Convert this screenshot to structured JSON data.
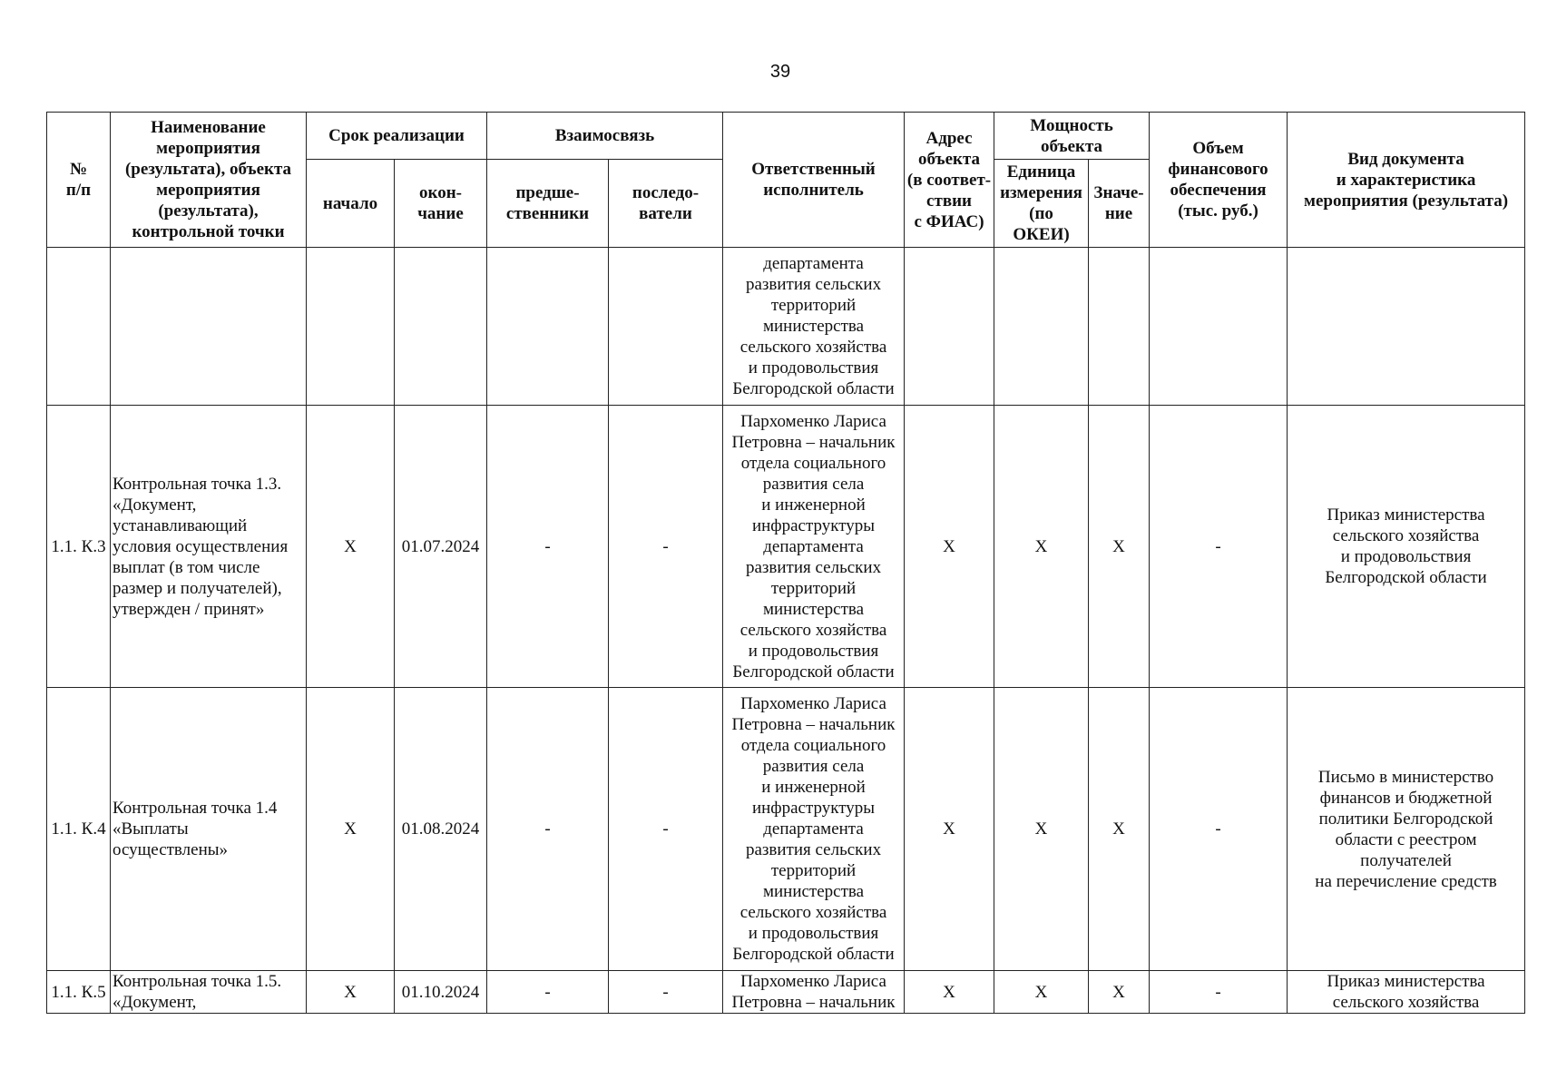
{
  "page_number": "39",
  "header": {
    "num": "№\nп/п",
    "name": "Наименование\nмероприятия\n(результата), объекта\nмероприятия\n(результата),\nконтрольной точки",
    "term": "Срок реализации",
    "term_start": "начало",
    "term_end": "окон-\nчание",
    "relation": "Взаимосвязь",
    "predecessors": "предше-\nственники",
    "successors": "последо-\nватели",
    "executor": "Ответственный\nисполнитель",
    "address": "Адрес\nобъекта\n(в соответ-\nствии\nс ФИАС)",
    "capacity": "Мощность\nобъекта",
    "unit": "Единица\nизмерения\n(по\nОКЕИ)",
    "value": "Значе-\nние",
    "finance": "Объем\nфинансового\nобеспечения\n(тыс. руб.)",
    "doc": "Вид документа\nи характеристика\nмероприятия (результата)"
  },
  "rows": [
    {
      "num": "",
      "name": "",
      "start": "",
      "end": "",
      "pred": "",
      "succ": "",
      "executor": "департамента\nразвития сельских\nтерриторий\nминистерства\nсельского хозяйства\nи продовольствия\nБелгородской области",
      "address": "",
      "unit": "",
      "value": "",
      "finance": "",
      "doc": ""
    },
    {
      "num": "1.1. К.3",
      "name": "Контрольная точка 1.3.\n«Документ,\nустанавливающий\nусловия осуществления\nвыплат (в том числе\nразмер и получателей),\nутвержден / принят»",
      "start": "X",
      "end": "01.07.2024",
      "pred": "-",
      "succ": "-",
      "executor": "Пархоменко Лариса\nПетровна – начальник\nотдела социального\nразвития села\nи инженерной\nинфраструктуры\nдепартамента\nразвития сельских\nтерриторий\nминистерства\nсельского хозяйства\nи продовольствия\nБелгородской области",
      "address": "X",
      "unit": "X",
      "value": "X",
      "finance": "-",
      "doc": "Приказ министерства\nсельского хозяйства\nи продовольствия\nБелгородской области"
    },
    {
      "num": "1.1. К.4",
      "name": "Контрольная точка 1.4\n«Выплаты\nосуществлены»",
      "start": "X",
      "end": "01.08.2024",
      "pred": "-",
      "succ": "-",
      "executor": "Пархоменко Лариса\nПетровна – начальник\nотдела социального\nразвития села\nи инженерной\nинфраструктуры\nдепартамента\nразвития сельских\nтерриторий\nминистерства\nсельского хозяйства\nи продовольствия\nБелгородской области",
      "address": "X",
      "unit": "X",
      "value": "X",
      "finance": "-",
      "doc": "Письмо в министерство\nфинансов и бюджетной\nполитики Белгородской\nобласти с реестром\nполучателей\nна перечисление средств"
    },
    {
      "num": "1.1. К.5",
      "name": "Контрольная точка 1.5.\n«Документ,",
      "start": "X",
      "end": "01.10.2024",
      "pred": "-",
      "succ": "-",
      "executor": "Пархоменко Лариса\nПетровна – начальник",
      "address": "X",
      "unit": "X",
      "value": "X",
      "finance": "-",
      "doc": "Приказ министерства\nсельского хозяйства"
    }
  ]
}
